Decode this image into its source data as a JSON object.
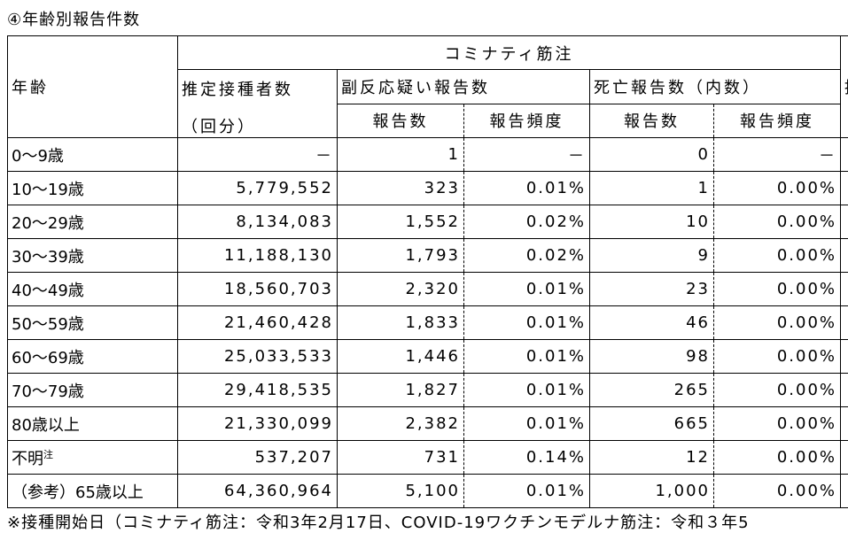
{
  "title": "④年齢別報告件数",
  "table": {
    "age_header": "年齢",
    "vaccine": "コミナティ筋注",
    "estimated_header": "推定接種者数",
    "estimated_unit": "（回分）",
    "adverse_header": "副反応疑い報告数",
    "death_header": "死亡報告数（内数）",
    "count_header": "報告数",
    "freq_header": "報告頻度",
    "next_header": "推",
    "rows": [
      {
        "age": "0～9歳",
        "cells": [
          "－",
          "1",
          "－",
          "0",
          "－"
        ]
      },
      {
        "age": "10～19歳",
        "cells": [
          "5,779,552",
          "323",
          "0.01%",
          "1",
          "0.00%"
        ]
      },
      {
        "age": "20～29歳",
        "cells": [
          "8,134,083",
          "1,552",
          "0.02%",
          "10",
          "0.00%"
        ]
      },
      {
        "age": "30～39歳",
        "cells": [
          "11,188,130",
          "1,793",
          "0.02%",
          "9",
          "0.00%"
        ]
      },
      {
        "age": "40～49歳",
        "cells": [
          "18,560,703",
          "2,320",
          "0.01%",
          "23",
          "0.00%"
        ]
      },
      {
        "age": "50～59歳",
        "cells": [
          "21,460,428",
          "1,833",
          "0.01%",
          "46",
          "0.00%"
        ]
      },
      {
        "age": "60～69歳",
        "cells": [
          "25,033,533",
          "1,446",
          "0.01%",
          "98",
          "0.00%"
        ]
      },
      {
        "age": "70～79歳",
        "cells": [
          "29,418,535",
          "1,827",
          "0.01%",
          "265",
          "0.00%"
        ]
      },
      {
        "age": "80歳以上",
        "cells": [
          "21,330,099",
          "2,382",
          "0.01%",
          "665",
          "0.00%"
        ]
      },
      {
        "age": "不明",
        "note": "注",
        "cells": [
          "537,207",
          "731",
          "0.14%",
          "12",
          "0.00%"
        ]
      },
      {
        "age": "（参考）65歳以上",
        "cells": [
          "64,360,964",
          "5,100",
          "0.01%",
          "1,000",
          "0.00%"
        ]
      }
    ]
  },
  "footnote": "※接種開始日（コミナティ筋注：令和3年2月17日、COVID-19ワクチンモデルナ筋注：令和３年5"
}
